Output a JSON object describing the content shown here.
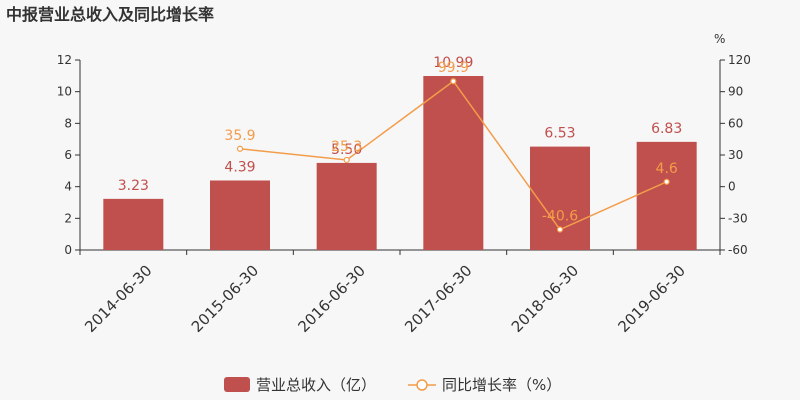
{
  "chart_data": {
    "type": "bar",
    "title": "中报营业总收入及同比增长率",
    "categories": [
      "2014-06-30",
      "2015-06-30",
      "2016-06-30",
      "2017-06-30",
      "2018-06-30",
      "2019-06-30"
    ],
    "series": [
      {
        "name": "营业总收入（亿）",
        "type": "bar",
        "axis": "left",
        "color": "#c0504d",
        "values": [
          3.23,
          4.39,
          5.5,
          10.99,
          6.53,
          6.83
        ],
        "labels": [
          "3.23",
          "4.39",
          "5.50",
          "10.99",
          "6.53",
          "6.83"
        ]
      },
      {
        "name": "同比增长率（%）",
        "type": "line",
        "axis": "right",
        "color": "#f39c4a",
        "values": [
          null,
          35.9,
          25.3,
          99.9,
          -40.6,
          4.6
        ],
        "labels": [
          "",
          "35.9",
          "25.3",
          "99.9",
          "-40.6",
          "4.6"
        ]
      }
    ],
    "y_left": {
      "min": 0,
      "max": 12,
      "ticks": [
        0,
        2,
        4,
        6,
        8,
        10,
        12
      ]
    },
    "y_right": {
      "min": -60,
      "max": 120,
      "ticks": [
        -60,
        -30,
        0,
        30,
        60,
        90,
        120
      ],
      "unit": "%"
    },
    "grid": false,
    "legend_position": "bottom"
  }
}
